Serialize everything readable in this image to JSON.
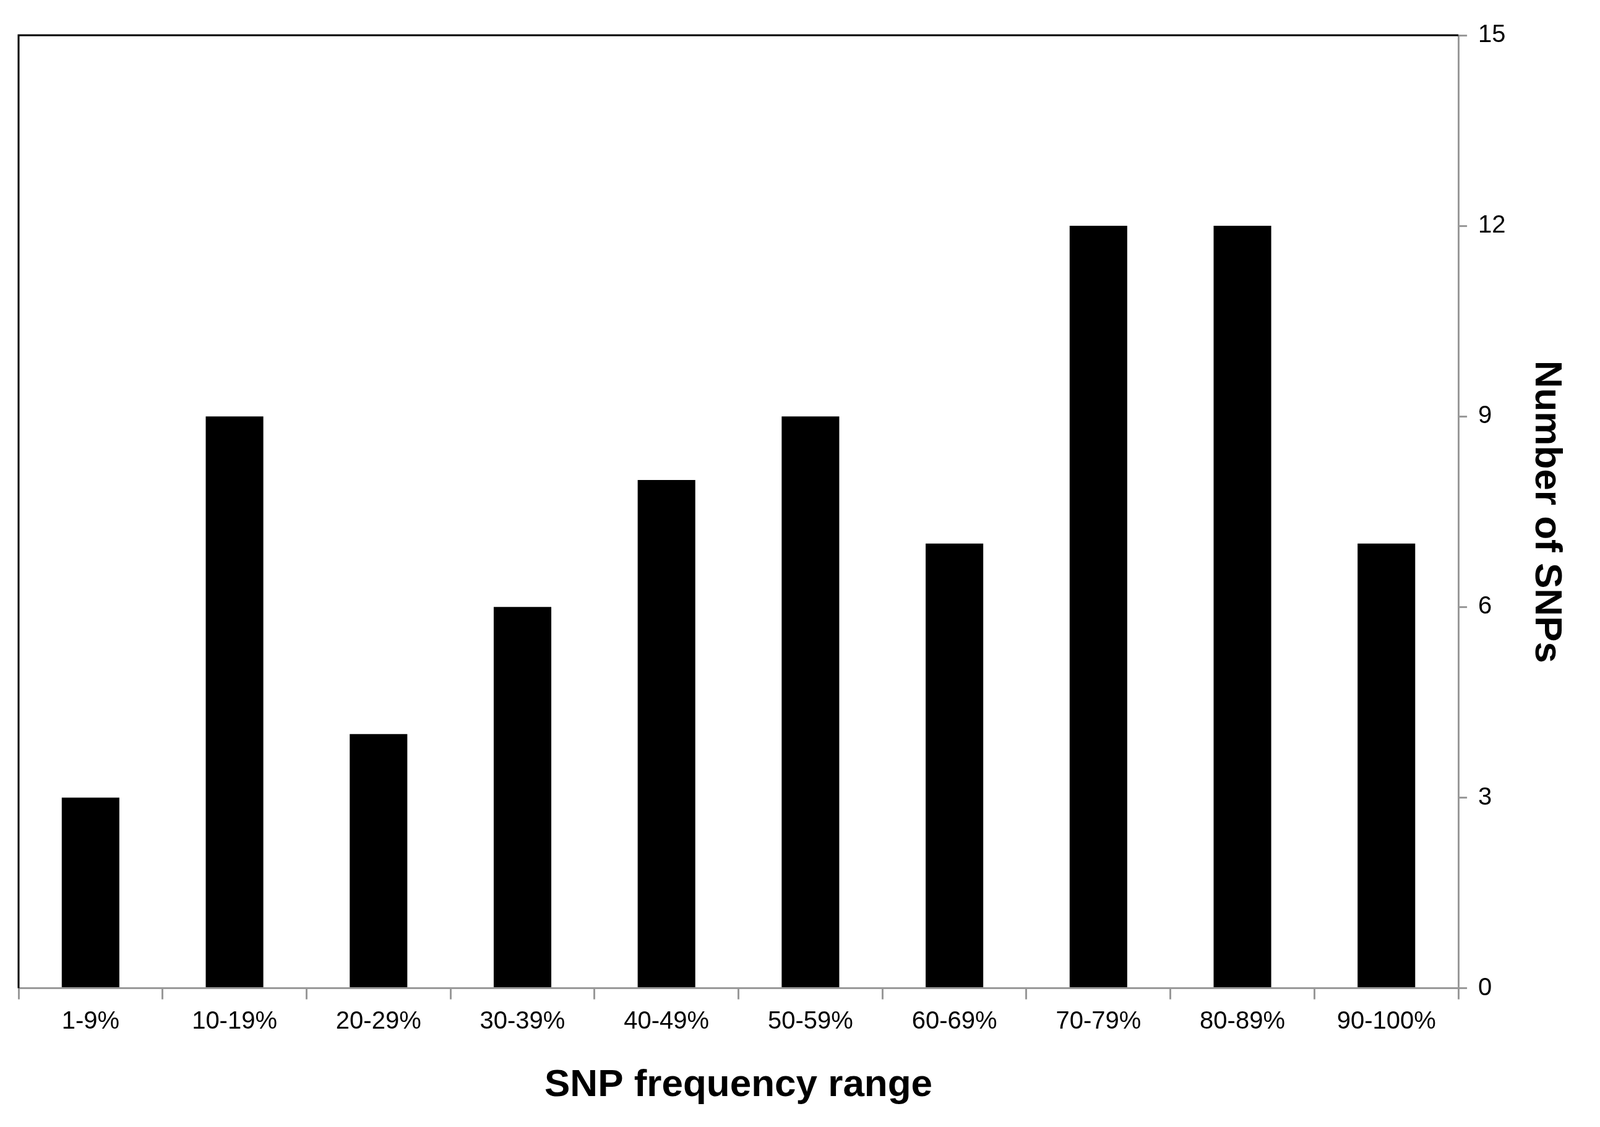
{
  "chart_data": {
    "type": "bar",
    "categories": [
      "1-9%",
      "10-19%",
      "20-29%",
      "30-39%",
      "40-49%",
      "50-59%",
      "60-69%",
      "70-79%",
      "80-89%",
      "90-100%"
    ],
    "values": [
      3,
      9,
      4,
      6,
      8,
      9,
      7,
      12,
      12,
      7
    ],
    "color": "#000000",
    "x_label": "SNP frequency range",
    "y_label": "Number of SNPs",
    "ylim": [
      0,
      15
    ],
    "yticks": [
      0,
      3,
      6,
      9,
      12,
      15
    ],
    "grid": false
  }
}
